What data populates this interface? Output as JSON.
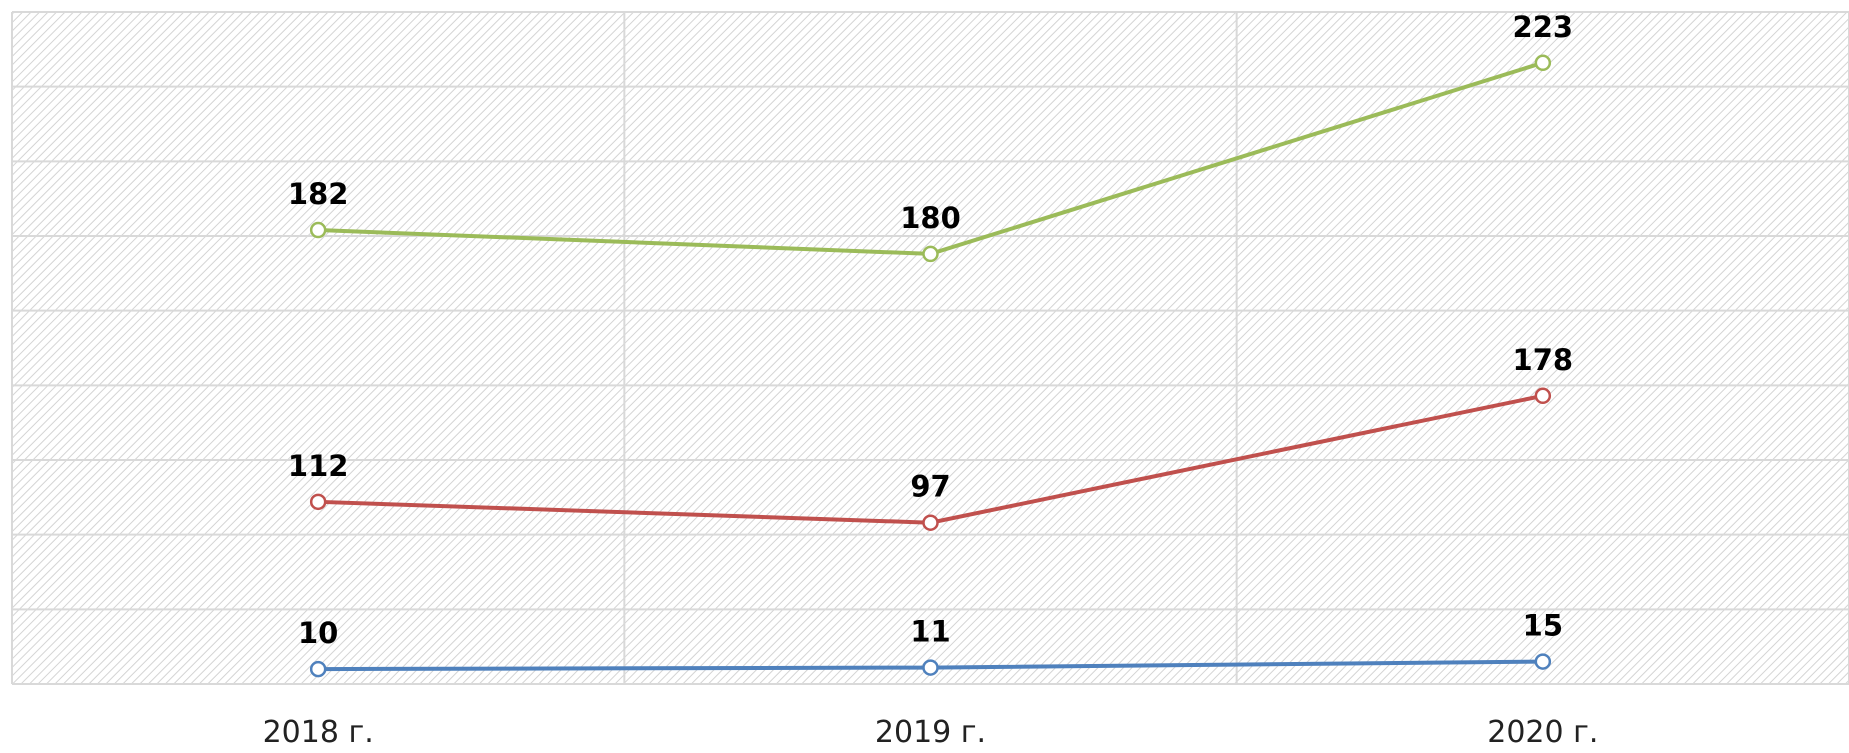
{
  "chart_data": {
    "type": "line",
    "stacked": true,
    "categories": [
      "2018 г.",
      "2019 г.",
      "2020 г."
    ],
    "series": [
      {
        "color": "#4f81bd",
        "values": [
          10,
          11,
          15
        ]
      },
      {
        "color": "#c0504d",
        "values": [
          112,
          97,
          178
        ]
      },
      {
        "color": "#9bbb59",
        "values": [
          182,
          180,
          223
        ]
      }
    ],
    "ylim": [
      0,
      450
    ],
    "yticks": [
      0,
      50,
      100,
      150,
      200,
      250,
      300,
      350,
      400,
      450
    ],
    "grid": true
  }
}
